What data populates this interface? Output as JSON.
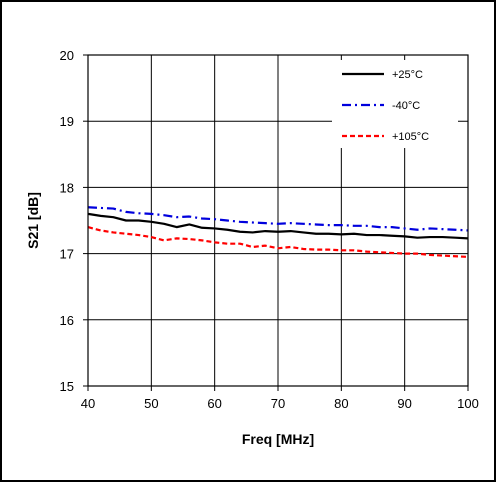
{
  "chart_data": {
    "type": "line",
    "xlabel": "Freq [MHz]",
    "ylabel": "S21 [dB]",
    "xlim": [
      40,
      100
    ],
    "ylim": [
      15,
      20
    ],
    "xticks": [
      40,
      50,
      60,
      70,
      80,
      90,
      100
    ],
    "yticks": [
      15,
      16,
      17,
      18,
      19,
      20
    ],
    "grid": true,
    "legend_position": "top-right",
    "x": [
      40,
      42,
      44,
      46,
      48,
      50,
      52,
      54,
      56,
      58,
      60,
      62,
      64,
      66,
      68,
      70,
      72,
      74,
      76,
      78,
      80,
      82,
      84,
      86,
      88,
      90,
      92,
      94,
      96,
      98,
      100
    ],
    "series": [
      {
        "name": "+25°C",
        "color": "#000000",
        "dash": "solid",
        "values": [
          17.6,
          17.57,
          17.55,
          17.5,
          17.5,
          17.48,
          17.45,
          17.4,
          17.44,
          17.39,
          17.38,
          17.36,
          17.33,
          17.32,
          17.34,
          17.33,
          17.34,
          17.32,
          17.3,
          17.3,
          17.29,
          17.3,
          17.28,
          17.28,
          17.27,
          17.26,
          17.24,
          17.25,
          17.25,
          17.24,
          17.23
        ]
      },
      {
        "name": "-40°C",
        "color": "#0000dd",
        "dash": "dashdot",
        "values": [
          17.7,
          17.69,
          17.68,
          17.63,
          17.61,
          17.6,
          17.58,
          17.55,
          17.56,
          17.53,
          17.52,
          17.5,
          17.48,
          17.47,
          17.46,
          17.45,
          17.46,
          17.45,
          17.44,
          17.43,
          17.43,
          17.42,
          17.42,
          17.4,
          17.4,
          17.38,
          17.36,
          17.38,
          17.37,
          17.36,
          17.35
        ]
      },
      {
        "name": "+105°C",
        "color": "#ff0000",
        "dash": "dashed",
        "values": [
          17.4,
          17.35,
          17.32,
          17.3,
          17.28,
          17.25,
          17.2,
          17.23,
          17.22,
          17.2,
          17.17,
          17.15,
          17.15,
          17.1,
          17.12,
          17.08,
          17.1,
          17.07,
          17.06,
          17.06,
          17.05,
          17.05,
          17.03,
          17.02,
          17.01,
          17.0,
          17.0,
          16.98,
          16.97,
          16.96,
          16.95
        ]
      }
    ]
  }
}
